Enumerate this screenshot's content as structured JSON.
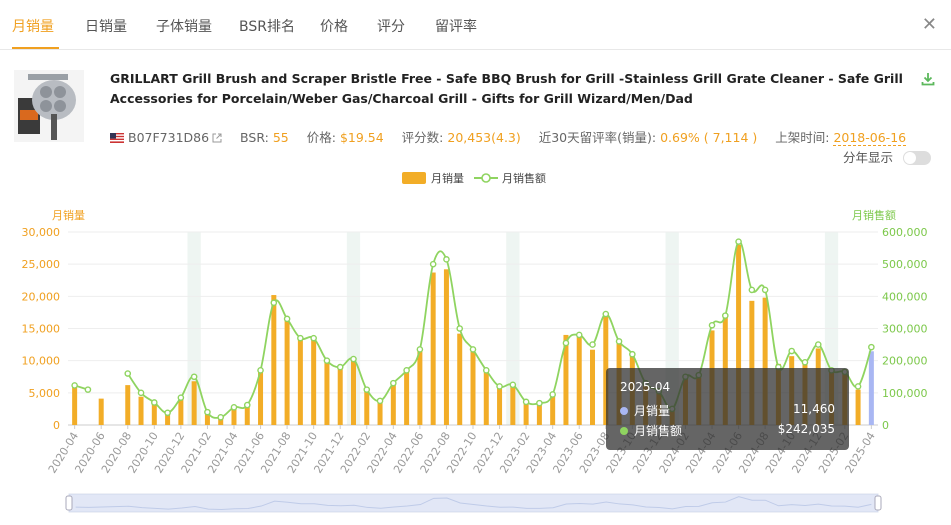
{
  "tabs": [
    {
      "label": "月销量",
      "active": true
    },
    {
      "label": "日销量"
    },
    {
      "label": "子体销量"
    },
    {
      "label": "BSR排名"
    },
    {
      "label": "价格"
    },
    {
      "label": "评分"
    },
    {
      "label": "留评率"
    }
  ],
  "close_icon": "close-icon",
  "product": {
    "title": "GRILLART Grill Brush and Scraper Bristle Free - Safe BBQ Brush for Grill -Stainless Grill Grate Cleaner - Safe Grill Accessories for Porcelain/Weber Gas/Charcoal Grill - Gifts for Grill Wizard/Men/Dad",
    "asin": "B07F731D86",
    "bsr_label": "BSR:",
    "bsr": "55",
    "price_label": "价格:",
    "price": "$19.54",
    "reviews_label": "评分数:",
    "reviews": "20,453(4.3)",
    "review_rate_label": "近30天留评率(销量):",
    "review_rate": "0.69% ( 7,114 )",
    "listed_label": "上架时间:",
    "listed": "2018-06-16"
  },
  "toggle_label": "分年显示",
  "chart_data": {
    "type": "bar+line",
    "legend": [
      "月销量",
      "月销售额"
    ],
    "y_left_label": "月销量",
    "y_right_label": "月销售额",
    "y_left_ticks": [
      "0",
      "5,000",
      "10,000",
      "15,000",
      "20,000",
      "25,000",
      "30,000"
    ],
    "y_right_ticks": [
      "0",
      "100,000",
      "200,000",
      "300,000",
      "400,000",
      "500,000",
      "600,000"
    ],
    "y_left_max": 30000,
    "y_right_max": 600000,
    "x_tick_labels": [
      "2020-04",
      "2020-06",
      "2020-08",
      "2020-10",
      "2020-12",
      "2021-02",
      "2021-04",
      "2021-06",
      "2021-08",
      "2021-10",
      "2021-12",
      "2022-02",
      "2022-04",
      "2022-06",
      "2022-08",
      "2022-10",
      "2022-12",
      "2023-02",
      "2023-04",
      "2023-06",
      "2023-08",
      "2023-10",
      "2023-12",
      "2024-02",
      "2024-04",
      "2024-06",
      "2024-08",
      "2024-10",
      "2024-12",
      "2025-02",
      "2025-04"
    ],
    "months": [
      "2020-04",
      "2020-05",
      "2020-06",
      "2020-07",
      "2020-08",
      "2020-09",
      "2020-10",
      "2020-11",
      "2020-12",
      "2021-01",
      "2021-02",
      "2021-03",
      "2021-04",
      "2021-05",
      "2021-06",
      "2021-07",
      "2021-08",
      "2021-09",
      "2021-10",
      "2021-11",
      "2021-12",
      "2022-01",
      "2022-02",
      "2022-03",
      "2022-04",
      "2022-05",
      "2022-06",
      "2022-07",
      "2022-08",
      "2022-09",
      "2022-10",
      "2022-11",
      "2022-12",
      "2023-01",
      "2023-02",
      "2023-03",
      "2023-04",
      "2023-05",
      "2023-06",
      "2023-07",
      "2023-08",
      "2023-09",
      "2023-10",
      "2023-11",
      "2023-12",
      "2024-01",
      "2024-02",
      "2024-03",
      "2024-04",
      "2024-05",
      "2024-06",
      "2024-07",
      "2024-08",
      "2024-09",
      "2024-10",
      "2024-11",
      "2024-12",
      "2025-01",
      "2025-02",
      "2025-03",
      "2025-04"
    ],
    "units": [
      6100,
      null,
      4100,
      null,
      6200,
      4400,
      3300,
      1900,
      4300,
      6800,
      1900,
      1200,
      2800,
      3100,
      8500,
      20200,
      16600,
      13500,
      13600,
      10200,
      9000,
      10300,
      5500,
      3700,
      6500,
      8500,
      11700,
      23700,
      24200,
      14200,
      11700,
      8400,
      6000,
      6100,
      3600,
      3400,
      4900,
      14000,
      13700,
      11700,
      17500,
      13200,
      11000,
      6500,
      5200,
      2500,
      7500,
      7800,
      14700,
      17000,
      28000,
      19300,
      19800,
      9500,
      10700,
      9800,
      11900,
      8700,
      8700,
      5500,
      11460
    ],
    "sales": [
      123000,
      110000,
      null,
      null,
      160000,
      100000,
      70000,
      38000,
      85000,
      150000,
      40000,
      24000,
      55000,
      62000,
      170000,
      380000,
      330000,
      270000,
      270000,
      200000,
      180000,
      205000,
      110000,
      75000,
      130000,
      170000,
      235000,
      500000,
      515000,
      300000,
      235000,
      170000,
      120000,
      125000,
      72000,
      68000,
      95000,
      255000,
      280000,
      250000,
      345000,
      260000,
      220000,
      130000,
      105000,
      50000,
      150000,
      155000,
      310000,
      340000,
      570000,
      420000,
      420000,
      180000,
      230000,
      195000,
      250000,
      170000,
      165000,
      120000,
      242035
    ],
    "highlight_month": "2025-04",
    "tooltip": {
      "title": "2025-04",
      "units_label": "月销量",
      "units_value": "11,460",
      "sales_label": "月销售额",
      "sales_value": "$242,035"
    },
    "colors": {
      "bar": "#f2ad27",
      "line": "#8fd460",
      "highlight_bar": "#a9b7f3",
      "left_axis": "#f0a020",
      "right_axis": "#7cc84a"
    }
  }
}
